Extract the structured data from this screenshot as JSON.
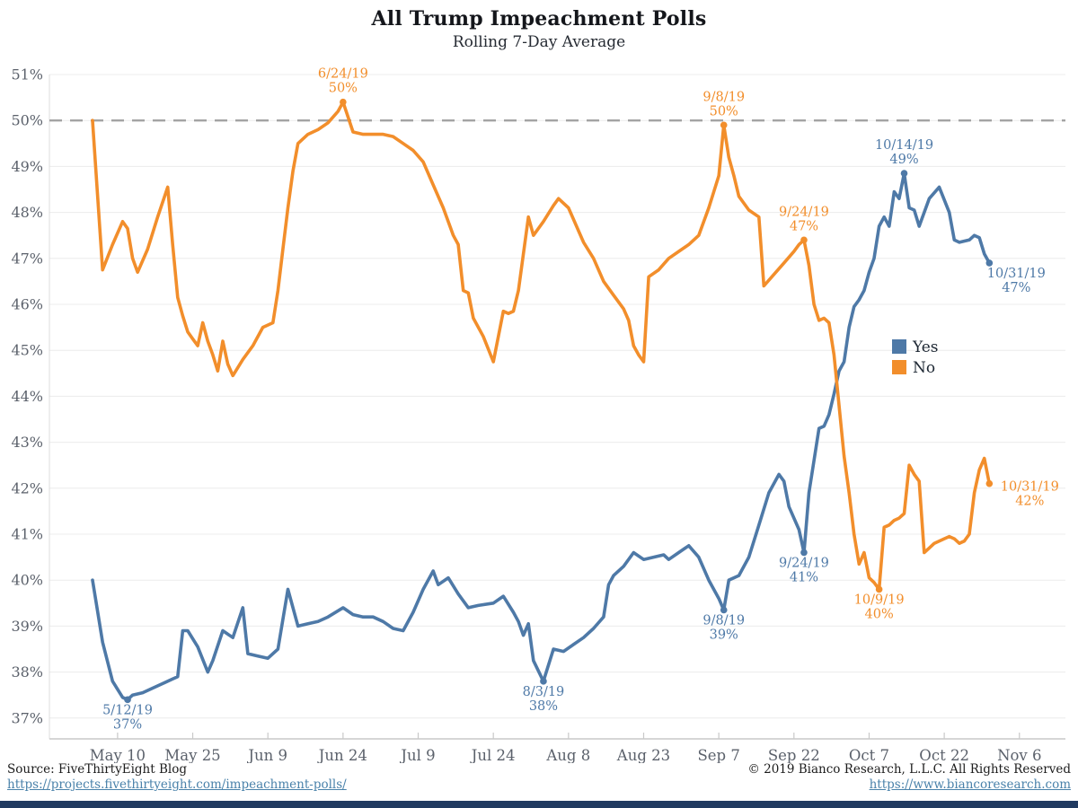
{
  "title": "All Trump Impeachment Polls",
  "subtitle": "Rolling 7-Day Average",
  "footer": {
    "source_text": "Source: FiveThirtyEight Blog",
    "source_url": "https://projects.fivethirtyeight.com/impeachment-polls/",
    "copyright_text": "© 2019 Bianco Research, L.L.C. All Rights Reserved",
    "site_url": "https://www.biancoresearch.com"
  },
  "colors": {
    "yes": "#4e79a7",
    "no": "#f28e2b",
    "grid": "#ececec",
    "axis": "#c9c9c9",
    "tick_label": "#5b616b",
    "dashed": "#a3a3a3",
    "legend_text": "#1d2733",
    "bottom_bar": "#203a60"
  },
  "chart_data": {
    "type": "line",
    "title": "All Trump Impeachment Polls",
    "subtitle": "Rolling 7-Day Average",
    "ylabel": "Percent",
    "ylim": [
      37,
      51
    ],
    "y_tick_suffix": "%",
    "grid": true,
    "legend_position": "middle-right",
    "reference_line": {
      "value": 50,
      "style": "dashed"
    },
    "x_ticks": [
      {
        "label": "May 10",
        "date": "5/10"
      },
      {
        "label": "May 25",
        "date": "5/25"
      },
      {
        "label": "Jun 9",
        "date": "6/9"
      },
      {
        "label": "Jun 24",
        "date": "6/24"
      },
      {
        "label": "Jul 9",
        "date": "7/9"
      },
      {
        "label": "Jul 24",
        "date": "7/24"
      },
      {
        "label": "Aug 8",
        "date": "8/8"
      },
      {
        "label": "Aug 23",
        "date": "8/23"
      },
      {
        "label": "Sep 7",
        "date": "9/7"
      },
      {
        "label": "Sep 22",
        "date": "9/22"
      },
      {
        "label": "Oct 7",
        "date": "10/7"
      },
      {
        "label": "Oct 22",
        "date": "10/22"
      },
      {
        "label": "Nov 6",
        "date": "11/6"
      }
    ],
    "series": [
      {
        "name": "Yes",
        "color": "#4e79a7",
        "points": [
          [
            "5/5",
            40.0
          ],
          [
            "5/7",
            38.65
          ],
          [
            "5/9",
            37.8
          ],
          [
            "5/11",
            37.45
          ],
          [
            "5/12",
            37.4
          ],
          [
            "5/13",
            37.5
          ],
          [
            "5/15",
            37.55
          ],
          [
            "5/17",
            37.65
          ],
          [
            "5/19",
            37.75
          ],
          [
            "5/21",
            37.85
          ],
          [
            "5/22",
            37.9
          ],
          [
            "5/23",
            38.9
          ],
          [
            "5/24",
            38.9
          ],
          [
            "5/26",
            38.55
          ],
          [
            "5/28",
            38.0
          ],
          [
            "5/29",
            38.25
          ],
          [
            "5/31",
            38.9
          ],
          [
            "6/2",
            38.75
          ],
          [
            "6/4",
            39.4
          ],
          [
            "6/5",
            38.4
          ],
          [
            "6/7",
            38.35
          ],
          [
            "6/9",
            38.3
          ],
          [
            "6/11",
            38.5
          ],
          [
            "6/13",
            39.8
          ],
          [
            "6/15",
            39.0
          ],
          [
            "6/17",
            39.05
          ],
          [
            "6/19",
            39.1
          ],
          [
            "6/21",
            39.2
          ],
          [
            "6/24",
            39.4
          ],
          [
            "6/26",
            39.25
          ],
          [
            "6/28",
            39.2
          ],
          [
            "6/30",
            39.2
          ],
          [
            "7/2",
            39.1
          ],
          [
            "7/4",
            38.95
          ],
          [
            "7/6",
            38.9
          ],
          [
            "7/8",
            39.3
          ],
          [
            "7/10",
            39.8
          ],
          [
            "7/12",
            40.2
          ],
          [
            "7/13",
            39.9
          ],
          [
            "7/15",
            40.05
          ],
          [
            "7/17",
            39.7
          ],
          [
            "7/19",
            39.4
          ],
          [
            "7/21",
            39.45
          ],
          [
            "7/24",
            39.5
          ],
          [
            "7/26",
            39.65
          ],
          [
            "7/28",
            39.3
          ],
          [
            "7/29",
            39.1
          ],
          [
            "7/30",
            38.8
          ],
          [
            "7/31",
            39.05
          ],
          [
            "8/1",
            38.25
          ],
          [
            "8/3",
            37.8
          ],
          [
            "8/5",
            38.5
          ],
          [
            "8/7",
            38.45
          ],
          [
            "8/9",
            38.6
          ],
          [
            "8/11",
            38.75
          ],
          [
            "8/13",
            38.95
          ],
          [
            "8/15",
            39.2
          ],
          [
            "8/16",
            39.9
          ],
          [
            "8/17",
            40.1
          ],
          [
            "8/19",
            40.3
          ],
          [
            "8/21",
            40.6
          ],
          [
            "8/23",
            40.45
          ],
          [
            "8/25",
            40.5
          ],
          [
            "8/27",
            40.55
          ],
          [
            "8/28",
            40.45
          ],
          [
            "8/30",
            40.6
          ],
          [
            "9/1",
            40.75
          ],
          [
            "9/3",
            40.5
          ],
          [
            "9/5",
            40.0
          ],
          [
            "9/7",
            39.6
          ],
          [
            "9/8",
            39.35
          ],
          [
            "9/9",
            40.0
          ],
          [
            "9/11",
            40.1
          ],
          [
            "9/13",
            40.5
          ],
          [
            "9/15",
            41.2
          ],
          [
            "9/17",
            41.9
          ],
          [
            "9/19",
            42.3
          ],
          [
            "9/20",
            42.15
          ],
          [
            "9/21",
            41.6
          ],
          [
            "9/23",
            41.1
          ],
          [
            "9/24",
            40.6
          ],
          [
            "9/25",
            41.9
          ],
          [
            "9/26",
            42.6
          ],
          [
            "9/27",
            43.3
          ],
          [
            "9/28",
            43.35
          ],
          [
            "9/29",
            43.6
          ],
          [
            "9/30",
            44.05
          ],
          [
            "10/1",
            44.55
          ],
          [
            "10/2",
            44.75
          ],
          [
            "10/3",
            45.5
          ],
          [
            "10/4",
            45.95
          ],
          [
            "10/5",
            46.1
          ],
          [
            "10/6",
            46.3
          ],
          [
            "10/7",
            46.7
          ],
          [
            "10/8",
            47.0
          ],
          [
            "10/9",
            47.7
          ],
          [
            "10/10",
            47.9
          ],
          [
            "10/11",
            47.7
          ],
          [
            "10/12",
            48.45
          ],
          [
            "10/13",
            48.3
          ],
          [
            "10/14",
            48.85
          ],
          [
            "10/15",
            48.1
          ],
          [
            "10/16",
            48.05
          ],
          [
            "10/17",
            47.7
          ],
          [
            "10/19",
            48.3
          ],
          [
            "10/21",
            48.55
          ],
          [
            "10/23",
            48.0
          ],
          [
            "10/24",
            47.4
          ],
          [
            "10/25",
            47.35
          ],
          [
            "10/27",
            47.4
          ],
          [
            "10/28",
            47.5
          ],
          [
            "10/29",
            47.45
          ],
          [
            "10/30",
            47.1
          ],
          [
            "10/31",
            46.9
          ]
        ]
      },
      {
        "name": "No",
        "color": "#f28e2b",
        "points": [
          [
            "5/5",
            50.0
          ],
          [
            "5/7",
            46.75
          ],
          [
            "5/9",
            47.3
          ],
          [
            "5/11",
            47.8
          ],
          [
            "5/12",
            47.65
          ],
          [
            "5/13",
            47.0
          ],
          [
            "5/14",
            46.7
          ],
          [
            "5/16",
            47.2
          ],
          [
            "5/18",
            47.9
          ],
          [
            "5/20",
            48.55
          ],
          [
            "5/21",
            47.3
          ],
          [
            "5/22",
            46.15
          ],
          [
            "5/23",
            45.75
          ],
          [
            "5/24",
            45.4
          ],
          [
            "5/25",
            45.25
          ],
          [
            "5/26",
            45.1
          ],
          [
            "5/27",
            45.6
          ],
          [
            "5/28",
            45.2
          ],
          [
            "5/29",
            44.9
          ],
          [
            "5/30",
            44.55
          ],
          [
            "5/31",
            45.2
          ],
          [
            "6/1",
            44.7
          ],
          [
            "6/2",
            44.45
          ],
          [
            "6/4",
            44.8
          ],
          [
            "6/6",
            45.1
          ],
          [
            "6/8",
            45.5
          ],
          [
            "6/10",
            45.6
          ],
          [
            "6/11",
            46.3
          ],
          [
            "6/12",
            47.2
          ],
          [
            "6/13",
            48.1
          ],
          [
            "6/14",
            48.9
          ],
          [
            "6/15",
            49.5
          ],
          [
            "6/17",
            49.7
          ],
          [
            "6/19",
            49.8
          ],
          [
            "6/21",
            49.95
          ],
          [
            "6/23",
            50.2
          ],
          [
            "6/24",
            50.4
          ],
          [
            "6/26",
            49.75
          ],
          [
            "6/28",
            49.7
          ],
          [
            "6/30",
            49.7
          ],
          [
            "7/2",
            49.7
          ],
          [
            "7/4",
            49.65
          ],
          [
            "7/6",
            49.5
          ],
          [
            "7/8",
            49.35
          ],
          [
            "7/10",
            49.1
          ],
          [
            "7/12",
            48.6
          ],
          [
            "7/14",
            48.1
          ],
          [
            "7/16",
            47.5
          ],
          [
            "7/17",
            47.3
          ],
          [
            "7/18",
            46.3
          ],
          [
            "7/19",
            46.25
          ],
          [
            "7/20",
            45.7
          ],
          [
            "7/22",
            45.3
          ],
          [
            "7/24",
            44.75
          ],
          [
            "7/26",
            45.85
          ],
          [
            "7/27",
            45.8
          ],
          [
            "7/28",
            45.85
          ],
          [
            "7/29",
            46.3
          ],
          [
            "7/31",
            47.9
          ],
          [
            "8/1",
            47.5
          ],
          [
            "8/3",
            47.8
          ],
          [
            "8/5",
            48.15
          ],
          [
            "8/6",
            48.3
          ],
          [
            "8/8",
            48.1
          ],
          [
            "8/10",
            47.6
          ],
          [
            "8/11",
            47.35
          ],
          [
            "8/13",
            47.0
          ],
          [
            "8/15",
            46.5
          ],
          [
            "8/17",
            46.2
          ],
          [
            "8/19",
            45.9
          ],
          [
            "8/20",
            45.65
          ],
          [
            "8/21",
            45.1
          ],
          [
            "8/22",
            44.9
          ],
          [
            "8/23",
            44.75
          ],
          [
            "8/24",
            46.6
          ],
          [
            "8/26",
            46.75
          ],
          [
            "8/28",
            47.0
          ],
          [
            "8/30",
            47.15
          ],
          [
            "9/1",
            47.3
          ],
          [
            "9/3",
            47.5
          ],
          [
            "9/5",
            48.1
          ],
          [
            "9/7",
            48.8
          ],
          [
            "9/8",
            49.9
          ],
          [
            "9/9",
            49.2
          ],
          [
            "9/10",
            48.8
          ],
          [
            "9/11",
            48.35
          ],
          [
            "9/13",
            48.05
          ],
          [
            "9/15",
            47.9
          ],
          [
            "9/16",
            46.4
          ],
          [
            "9/18",
            46.65
          ],
          [
            "9/20",
            46.9
          ],
          [
            "9/22",
            47.15
          ],
          [
            "9/23",
            47.3
          ],
          [
            "9/24",
            47.4
          ],
          [
            "9/25",
            46.85
          ],
          [
            "9/26",
            46.0
          ],
          [
            "9/27",
            45.65
          ],
          [
            "9/28",
            45.7
          ],
          [
            "9/29",
            45.6
          ],
          [
            "9/30",
            44.9
          ],
          [
            "10/1",
            43.8
          ],
          [
            "10/2",
            42.7
          ],
          [
            "10/3",
            41.9
          ],
          [
            "10/4",
            41.0
          ],
          [
            "10/5",
            40.35
          ],
          [
            "10/6",
            40.6
          ],
          [
            "10/7",
            40.05
          ],
          [
            "10/8",
            39.95
          ],
          [
            "10/9",
            39.8
          ],
          [
            "10/10",
            41.15
          ],
          [
            "10/11",
            41.2
          ],
          [
            "10/12",
            41.3
          ],
          [
            "10/13",
            41.35
          ],
          [
            "10/14",
            41.45
          ],
          [
            "10/15",
            42.5
          ],
          [
            "10/16",
            42.3
          ],
          [
            "10/17",
            42.15
          ],
          [
            "10/18",
            40.6
          ],
          [
            "10/19",
            40.7
          ],
          [
            "10/20",
            40.8
          ],
          [
            "10/22",
            40.9
          ],
          [
            "10/23",
            40.95
          ],
          [
            "10/24",
            40.9
          ],
          [
            "10/25",
            40.8
          ],
          [
            "10/26",
            40.85
          ],
          [
            "10/27",
            41.0
          ],
          [
            "10/28",
            41.9
          ],
          [
            "10/29",
            42.4
          ],
          [
            "10/30",
            42.65
          ],
          [
            "10/31",
            42.1
          ]
        ]
      }
    ],
    "annotations": [
      {
        "series": "Yes",
        "date": "5/12",
        "date_label": "5/12/19",
        "value_label": "37%",
        "placement": "below"
      },
      {
        "series": "Yes",
        "date": "8/3",
        "date_label": "8/3/19",
        "value_label": "38%",
        "placement": "below"
      },
      {
        "series": "Yes",
        "date": "9/8",
        "date_label": "9/8/19",
        "value_label": "39%",
        "placement": "below"
      },
      {
        "series": "Yes",
        "date": "9/24",
        "date_label": "9/24/19",
        "value_label": "41%",
        "placement": "below"
      },
      {
        "series": "Yes",
        "date": "10/14",
        "date_label": "10/14/19",
        "value_label": "49%",
        "placement": "above"
      },
      {
        "series": "Yes",
        "date": "10/31",
        "date_label": "10/31/19",
        "value_label": "47%",
        "placement": "below-right"
      },
      {
        "series": "No",
        "date": "6/24",
        "date_label": "6/24/19",
        "value_label": "50%",
        "placement": "above"
      },
      {
        "series": "No",
        "date": "9/8",
        "date_label": "9/8/19",
        "value_label": "50%",
        "placement": "above"
      },
      {
        "series": "No",
        "date": "9/24",
        "date_label": "9/24/19",
        "value_label": "47%",
        "placement": "above"
      },
      {
        "series": "No",
        "date": "10/9",
        "date_label": "10/9/19",
        "value_label": "40%",
        "placement": "below"
      },
      {
        "series": "No",
        "date": "10/31",
        "date_label": "10/31/19",
        "value_label": "42%",
        "placement": "right"
      }
    ],
    "legend": [
      {
        "label": "Yes",
        "color": "#4e79a7"
      },
      {
        "label": "No",
        "color": "#f28e2b"
      }
    ]
  }
}
